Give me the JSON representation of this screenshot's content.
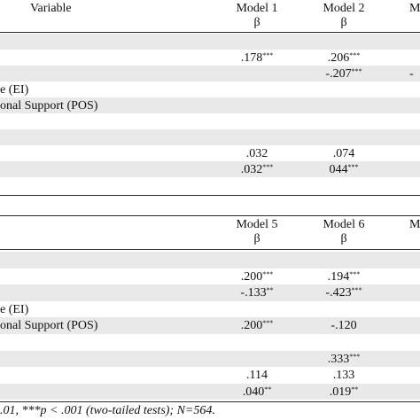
{
  "table1": {
    "variable_header": "Variable",
    "models": [
      "Model 1",
      "Model 2",
      "M"
    ],
    "beta": [
      "β",
      "β"
    ],
    "rows": [
      {
        "label": "",
        "v1": "",
        "v1s": "",
        "v2": "",
        "v2s": "",
        "v3": "",
        "shade": true
      },
      {
        "label": "",
        "v1": ".178",
        "v1s": "***",
        "v2": ".206",
        "v2s": "***",
        "v3": "",
        "shade": false
      },
      {
        "label": "",
        "v1": "",
        "v1s": "",
        "v2": "-.207",
        "v2s": "***",
        "v3": "-",
        "shade": true
      },
      {
        "label": "e (EI)",
        "v1": "",
        "v1s": "",
        "v2": "",
        "v2s": "",
        "v3": "",
        "shade": false
      },
      {
        "label": "onal Support (POS)",
        "v1": "",
        "v1s": "",
        "v2": "",
        "v2s": "",
        "v3": "",
        "shade": true
      },
      {
        "label": "",
        "v1": "",
        "v1s": "",
        "v2": "",
        "v2s": "",
        "v3": "",
        "shade": false
      },
      {
        "label": "",
        "v1": "",
        "v1s": "",
        "v2": "",
        "v2s": "",
        "v3": "",
        "shade": true
      },
      {
        "label": "",
        "v1": ".032",
        "v1s": "",
        "v2": ".074",
        "v2s": "",
        "v3": "",
        "shade": false
      },
      {
        "label": "",
        "v1": ".032",
        "v1s": "***",
        "v2": "044",
        "v2s": "***",
        "v3": "",
        "shade": true
      }
    ]
  },
  "table2": {
    "models": [
      "Model 5",
      "Model 6",
      "M"
    ],
    "beta": [
      "β",
      "β"
    ],
    "rows": [
      {
        "label": "",
        "v1": "",
        "v1s": "",
        "v2": "",
        "v2s": "",
        "v3": "",
        "shade": true
      },
      {
        "label": "",
        "v1": ".200",
        "v1s": "***",
        "v2": ".194",
        "v2s": "***",
        "v3": "",
        "shade": false
      },
      {
        "label": "",
        "v1": "-.133",
        "v1s": "**",
        "v2": "-.423",
        "v2s": "***",
        "v3": "",
        "shade": true
      },
      {
        "label": "e (EI)",
        "v1": "",
        "v1s": "",
        "v2": "",
        "v2s": "",
        "v3": "",
        "shade": false
      },
      {
        "label": "onal Support (POS)",
        "v1": ".200",
        "v1s": "***",
        "v2": "-.120",
        "v2s": "",
        "v3": "",
        "shade": true
      },
      {
        "label": "",
        "v1": "",
        "v1s": "",
        "v2": "",
        "v2s": "",
        "v3": "",
        "shade": false
      },
      {
        "label": "",
        "v1": "",
        "v1s": "",
        "v2": ".333",
        "v2s": "***",
        "v3": "",
        "shade": true
      },
      {
        "label": "",
        "v1": ".114",
        "v1s": "",
        "v2": ".133",
        "v2s": "",
        "v3": "",
        "shade": false
      },
      {
        "label": "",
        "v1": ".040",
        "v1s": "**",
        "v2": ".019",
        "v2s": "**",
        "v3": "",
        "shade": true
      }
    ]
  },
  "footnote": ".01, ***p < .001 (two-tailed tests); N=564."
}
